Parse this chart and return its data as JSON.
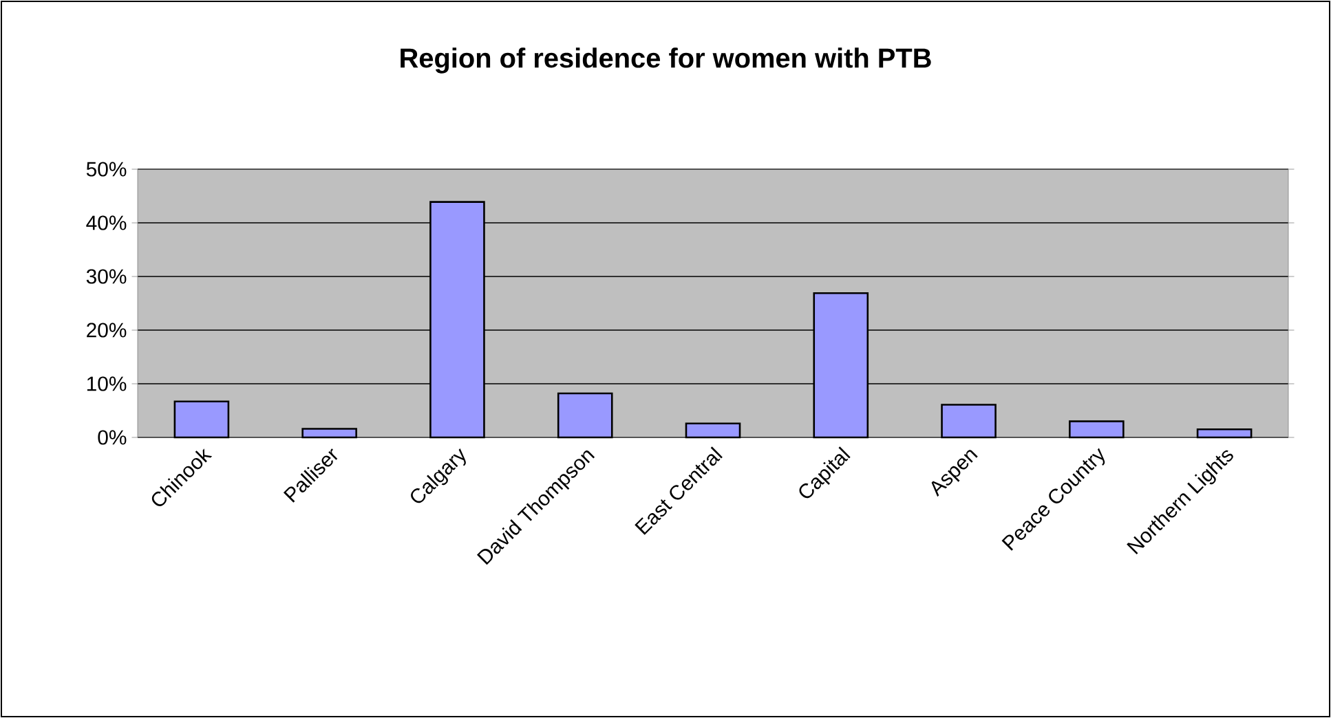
{
  "chart_data": {
    "type": "bar",
    "title": "Region of residence for women with PTB",
    "categories": [
      "Chinook",
      "Palliser",
      "Calgary",
      "David Thompson",
      "East Central",
      "Capital",
      "Aspen",
      "Peace Country",
      "Northern Lights"
    ],
    "values": [
      6.7,
      1.6,
      43.9,
      8.2,
      2.6,
      26.9,
      6.1,
      3.0,
      1.5
    ],
    "color": "#9999ff",
    "ylim": [
      0,
      50
    ],
    "yticks": [
      {
        "value": 0,
        "label": "0%"
      },
      {
        "value": 10,
        "label": "10%"
      },
      {
        "value": 20,
        "label": "20%"
      },
      {
        "value": 30,
        "label": "30%"
      },
      {
        "value": 40,
        "label": "40%"
      },
      {
        "value": 50,
        "label": "50%"
      }
    ],
    "grid": "y"
  }
}
